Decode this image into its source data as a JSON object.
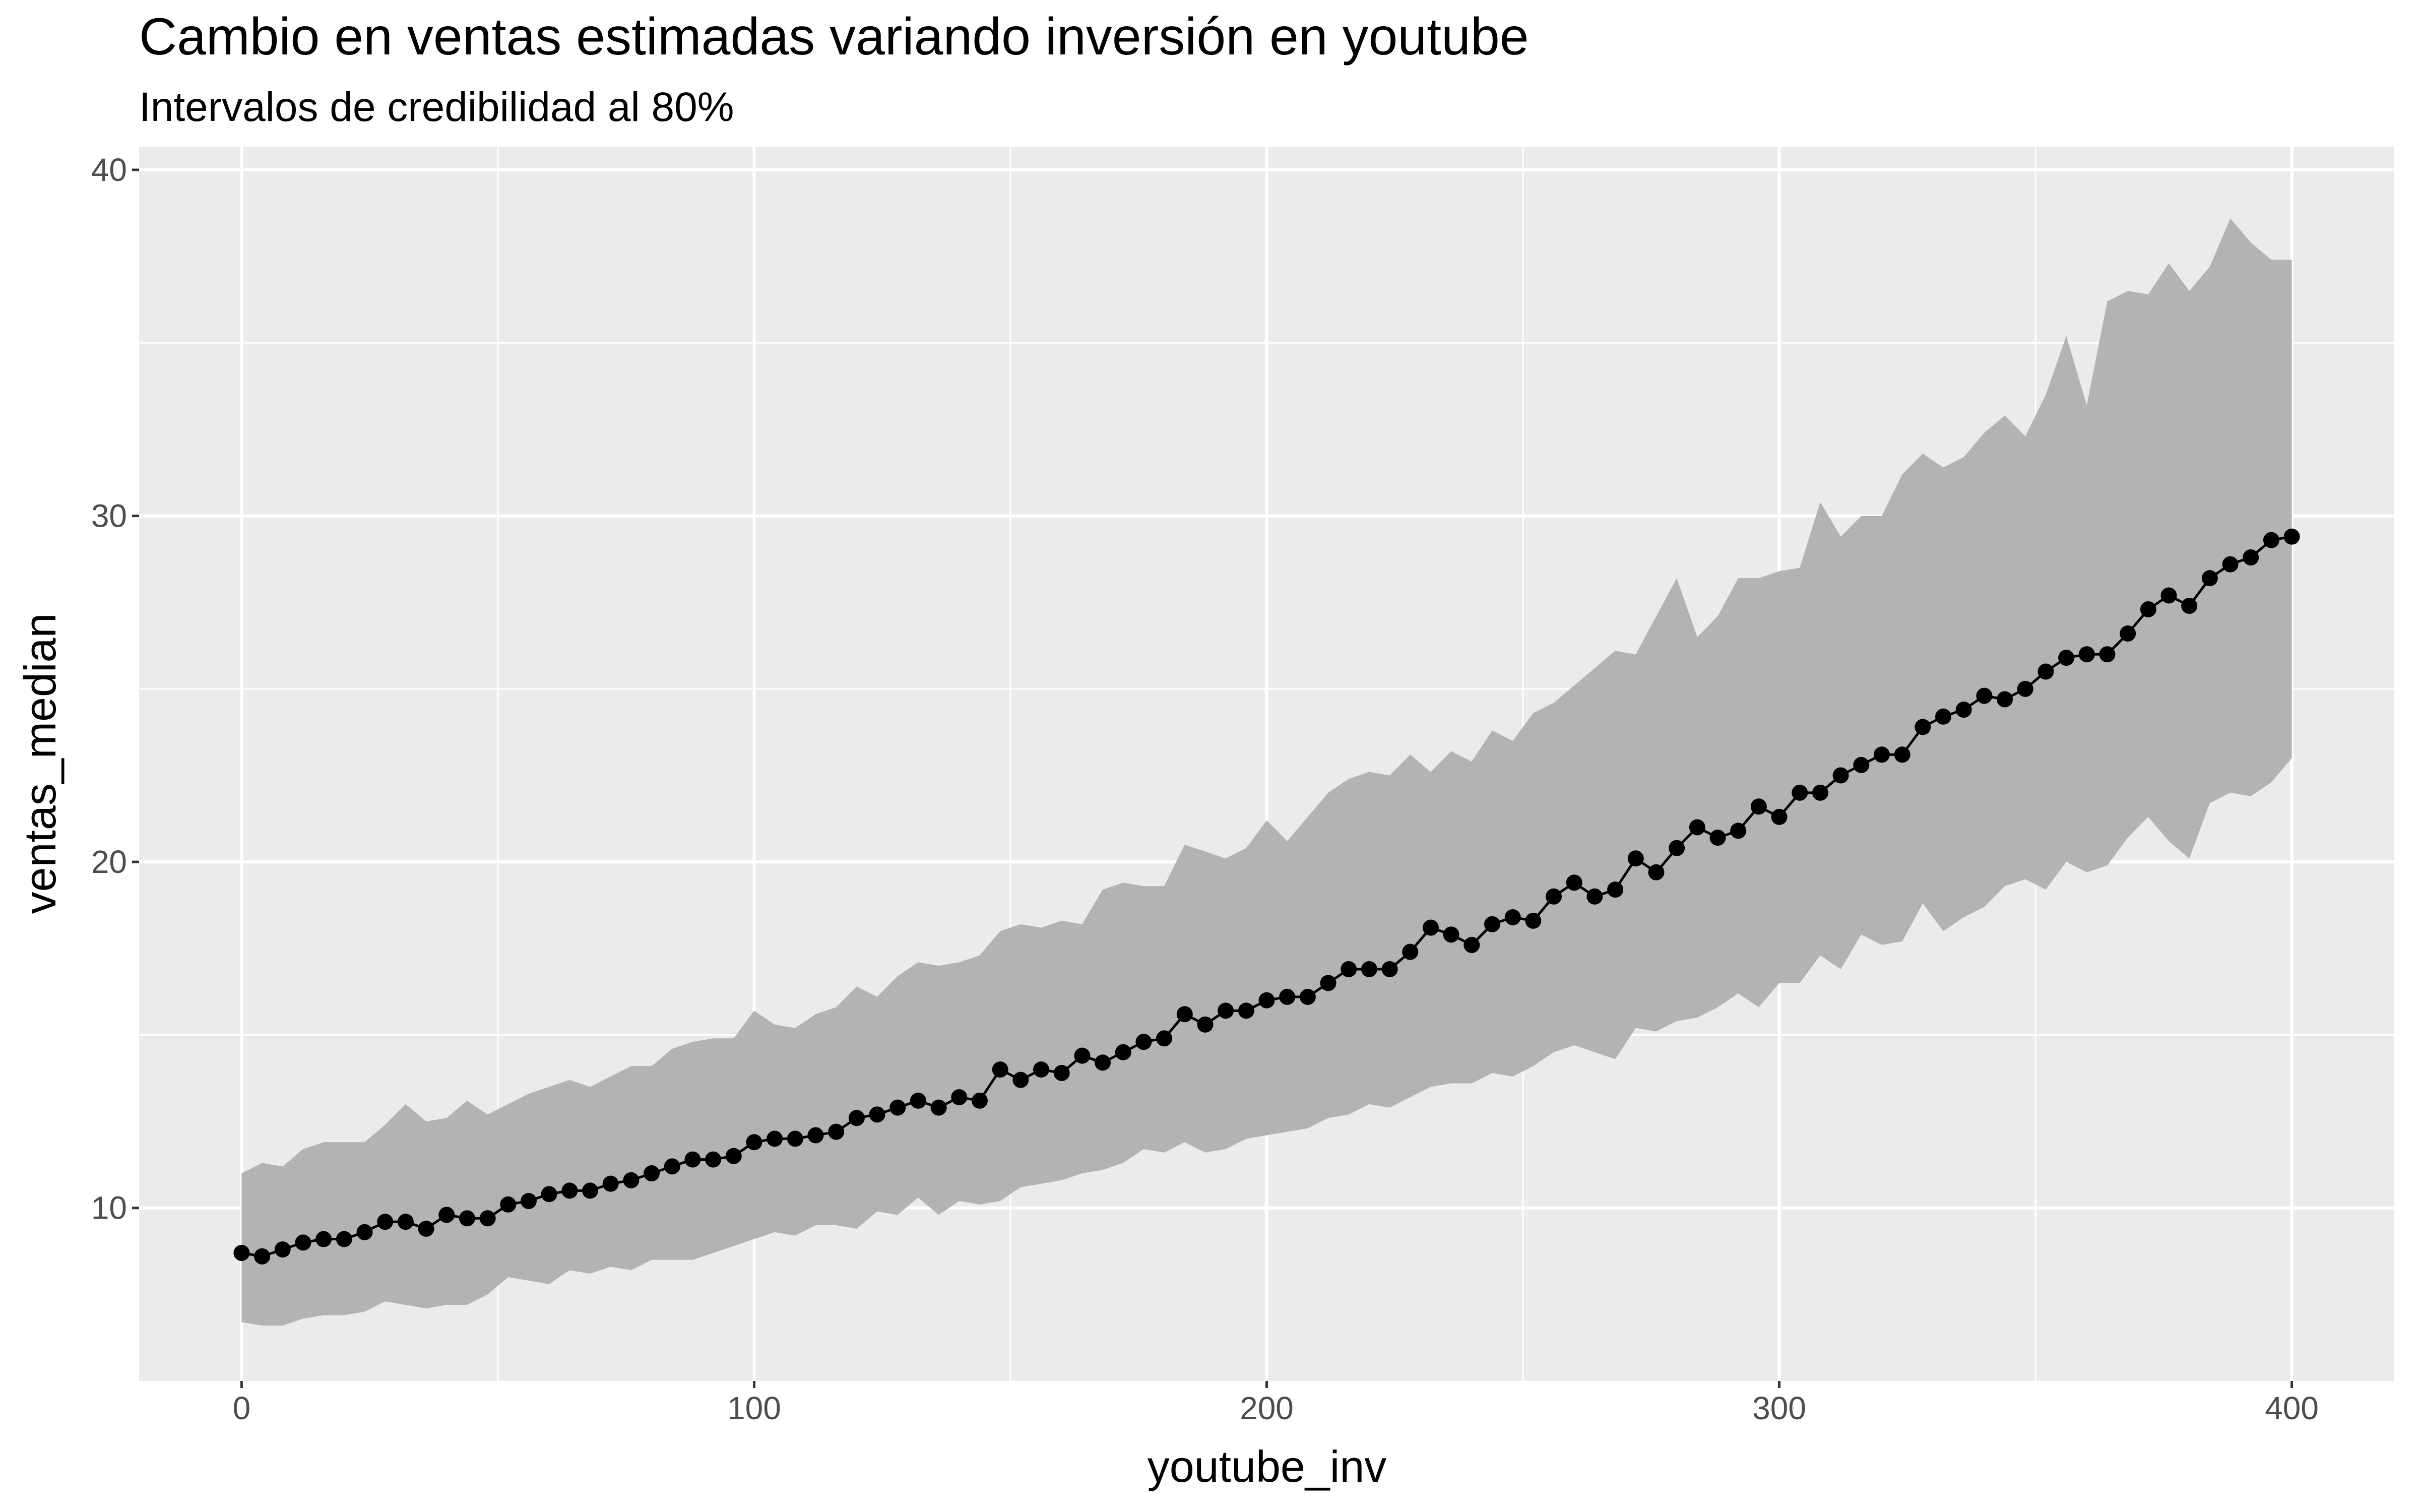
{
  "chart_data": {
    "type": "line",
    "title": "Cambio en ventas estimadas variando inversión en youtube",
    "subtitle": "Intervalos de credibilidad al 80%",
    "x_label": "youtube_inv",
    "y_label": "ventas_median",
    "x": [
      0,
      4,
      8,
      12,
      16,
      20,
      24,
      28,
      32,
      36,
      40,
      44,
      48,
      52,
      56,
      60,
      64,
      68,
      72,
      76,
      80,
      84,
      88,
      92,
      96,
      100,
      104,
      108,
      112,
      116,
      120,
      124,
      128,
      132,
      136,
      140,
      144,
      148,
      152,
      156,
      160,
      164,
      168,
      172,
      176,
      180,
      184,
      188,
      192,
      196,
      200,
      204,
      208,
      212,
      216,
      220,
      224,
      228,
      232,
      236,
      240,
      244,
      248,
      252,
      256,
      260,
      264,
      268,
      272,
      276,
      280,
      284,
      288,
      292,
      296,
      300,
      304,
      308,
      312,
      316,
      320,
      324,
      328,
      332,
      336,
      340,
      344,
      348,
      352,
      356,
      360,
      364,
      368,
      372,
      376,
      380,
      384,
      388,
      392,
      396,
      400
    ],
    "median": [
      8.7,
      8.6,
      8.8,
      9.0,
      9.1,
      9.1,
      9.3,
      9.6,
      9.6,
      9.4,
      9.8,
      9.7,
      9.7,
      10.1,
      10.2,
      10.4,
      10.5,
      10.5,
      10.7,
      10.8,
      11.0,
      11.2,
      11.4,
      11.4,
      11.5,
      11.9,
      12.0,
      12.0,
      12.1,
      12.2,
      12.6,
      12.7,
      12.9,
      13.1,
      12.9,
      13.2,
      13.1,
      14.0,
      13.7,
      14.0,
      13.9,
      14.4,
      14.2,
      14.5,
      14.8,
      14.9,
      15.6,
      15.3,
      15.7,
      15.7,
      16.0,
      16.1,
      16.1,
      16.5,
      16.9,
      16.9,
      16.9,
      17.4,
      18.1,
      17.9,
      17.6,
      18.2,
      18.4,
      18.3,
      19.0,
      19.4,
      19.0,
      19.2,
      20.1,
      19.7,
      20.4,
      21.0,
      20.7,
      20.9,
      21.6,
      21.3,
      22.0,
      22.0,
      22.5,
      22.8,
      23.1,
      23.1,
      23.9,
      24.2,
      24.4,
      24.8,
      24.7,
      25.0,
      25.5,
      25.9,
      26.0,
      26.0,
      26.6,
      27.3,
      27.7,
      27.4,
      28.2,
      28.6,
      28.8,
      29.3,
      29.4
    ],
    "lower": [
      6.7,
      6.6,
      6.6,
      6.8,
      6.9,
      6.9,
      7.0,
      7.3,
      7.2,
      7.1,
      7.2,
      7.2,
      7.5,
      8.0,
      7.9,
      7.8,
      8.2,
      8.1,
      8.3,
      8.2,
      8.5,
      8.5,
      8.5,
      8.7,
      8.9,
      9.1,
      9.3,
      9.2,
      9.5,
      9.5,
      9.4,
      9.9,
      9.8,
      10.3,
      9.8,
      10.2,
      10.1,
      10.2,
      10.6,
      10.7,
      10.8,
      11.0,
      11.1,
      11.3,
      11.7,
      11.6,
      11.9,
      11.6,
      11.7,
      12.0,
      12.1,
      12.2,
      12.3,
      12.6,
      12.7,
      13.0,
      12.9,
      13.2,
      13.5,
      13.6,
      13.6,
      13.9,
      13.8,
      14.1,
      14.5,
      14.7,
      14.5,
      14.3,
      15.2,
      15.1,
      15.4,
      15.5,
      15.8,
      16.2,
      15.8,
      16.5,
      16.5,
      17.3,
      16.9,
      17.9,
      17.6,
      17.7,
      18.8,
      18.0,
      18.4,
      18.7,
      19.3,
      19.5,
      19.2,
      20.0,
      19.7,
      19.9,
      20.7,
      21.3,
      20.6,
      20.1,
      21.7,
      22.0,
      21.9,
      22.3,
      23.0
    ],
    "upper": [
      11.0,
      11.3,
      11.2,
      11.7,
      11.9,
      11.9,
      11.9,
      12.4,
      13.0,
      12.5,
      12.6,
      13.1,
      12.7,
      13.0,
      13.3,
      13.5,
      13.7,
      13.5,
      13.8,
      14.1,
      14.1,
      14.6,
      14.8,
      14.9,
      14.9,
      15.7,
      15.3,
      15.2,
      15.6,
      15.8,
      16.4,
      16.1,
      16.7,
      17.1,
      17.0,
      17.1,
      17.3,
      18.0,
      18.2,
      18.1,
      18.3,
      18.2,
      19.2,
      19.4,
      19.3,
      19.3,
      20.5,
      20.3,
      20.1,
      20.4,
      21.2,
      20.6,
      21.3,
      22.0,
      22.4,
      22.6,
      22.5,
      23.1,
      22.6,
      23.2,
      22.9,
      23.8,
      23.5,
      24.3,
      24.6,
      25.1,
      25.6,
      26.1,
      26.0,
      27.1,
      28.2,
      26.5,
      27.1,
      28.2,
      28.2,
      28.4,
      28.5,
      30.4,
      29.4,
      30.0,
      30.0,
      31.2,
      31.8,
      31.4,
      31.7,
      32.4,
      32.9,
      32.3,
      33.5,
      35.2,
      33.2,
      36.2,
      36.5,
      36.4,
      37.3,
      36.5,
      37.2,
      38.6,
      37.9,
      37.4,
      37.4
    ],
    "color": "#000000",
    "ribbon_color": "#b3b3b3",
    "panel_color": "#ebebeb",
    "xlim": [
      -20,
      420
    ],
    "ylim": [
      5.0,
      40.67
    ],
    "xticks": [
      0,
      100,
      200,
      300,
      400
    ],
    "yticks": [
      10,
      20,
      30,
      40
    ],
    "grid": true
  }
}
